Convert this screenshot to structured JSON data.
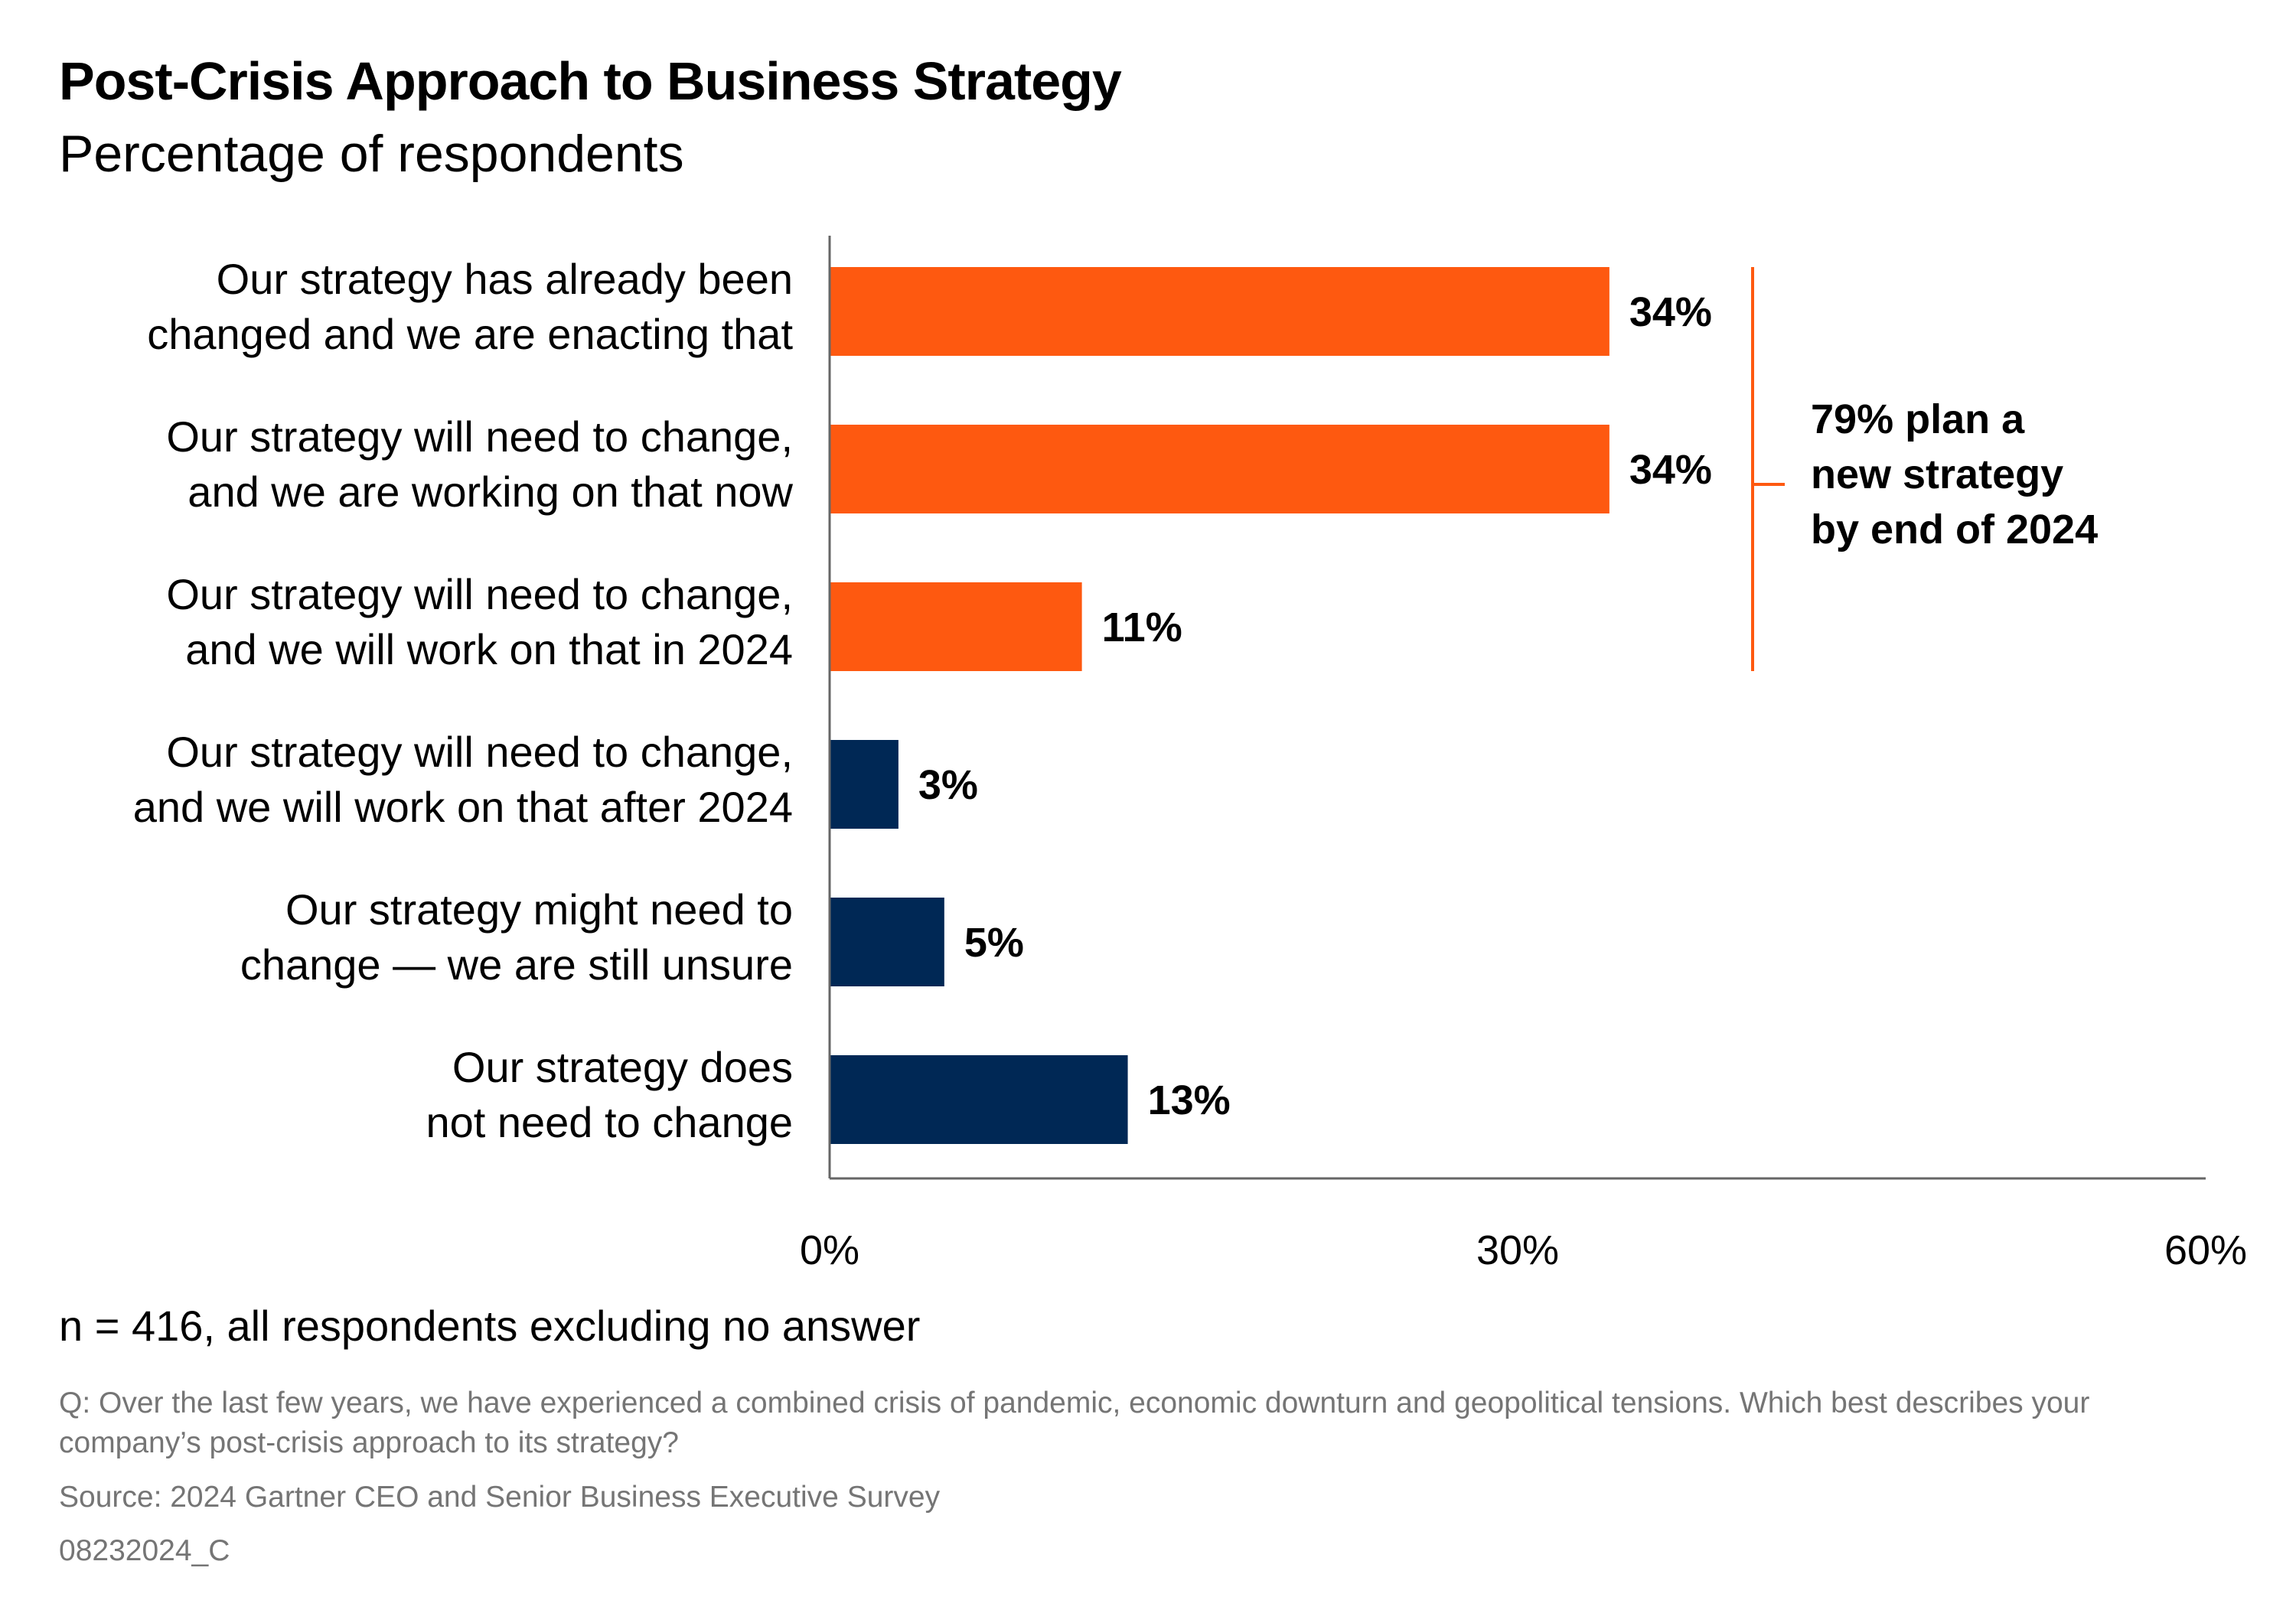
{
  "colors": {
    "highlight": "#fe5910",
    "base": "#002855",
    "axis": "#666666",
    "muted": "#757575"
  },
  "chart_data": {
    "type": "bar",
    "orientation": "horizontal",
    "title": "Post-Crisis Approach to Business Strategy",
    "subtitle": "Percentage of respondents",
    "categories": [
      [
        "Our strategy has already been",
        "changed and we are enacting that"
      ],
      [
        "Our strategy will need to change,",
        "and we are working on that now"
      ],
      [
        "Our strategy will need to change,",
        "and we will work on that in 2024"
      ],
      [
        "Our strategy will need to change,",
        "and we will work on that after 2024"
      ],
      [
        "Our strategy might need to",
        "change — we are still unsure"
      ],
      [
        "Our strategy does",
        "not need to change"
      ]
    ],
    "values": [
      34,
      34,
      11,
      3,
      5,
      13
    ],
    "value_labels": [
      "34%",
      "34%",
      "11%",
      "3%",
      "5%",
      "13%"
    ],
    "bar_colors": [
      "#fe5910",
      "#fe5910",
      "#fe5910",
      "#002855",
      "#002855",
      "#002855"
    ],
    "xlim": [
      0,
      60
    ],
    "xticks": [
      0,
      30,
      60
    ],
    "xtick_labels": [
      "0%",
      "30%",
      "60%"
    ],
    "grid": false,
    "annotation": {
      "bracket_rows": [
        0,
        2
      ],
      "lines": [
        "79% plan a",
        "new strategy",
        "by end of 2024"
      ]
    }
  },
  "footer": {
    "note": "n = 416, all respondents excluding no answer",
    "question": "Q: Over the last few years, we have experienced a combined crisis of pandemic, economic downturn and geopolitical tensions. Which best describes your company’s post-crisis approach to its strategy?",
    "source": "Source: 2024 Gartner CEO and Senior Business Executive Survey",
    "code": "08232024_C"
  }
}
